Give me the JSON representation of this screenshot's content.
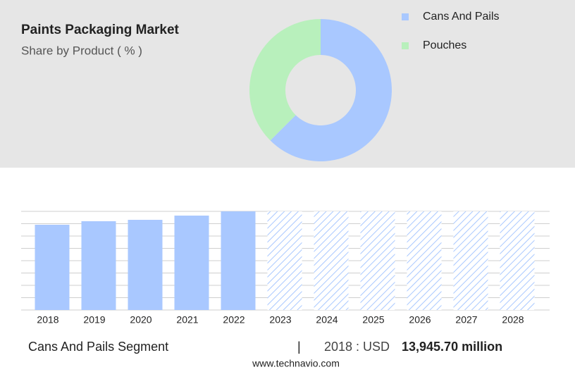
{
  "chart_data": [
    {
      "type": "pie",
      "title": "Paints Packaging Market",
      "subtitle": "Share by Product ( % )",
      "categories": [
        "Cans And Pails",
        "Pouches"
      ],
      "values": [
        62.5,
        37.5
      ],
      "colors": [
        "#a9c8ff",
        "#b8f0bc"
      ]
    },
    {
      "type": "bar",
      "categories": [
        "2018",
        "2019",
        "2020",
        "2021",
        "2022",
        "2023",
        "2024",
        "2025",
        "2026",
        "2027",
        "2028"
      ],
      "values": [
        13945.7,
        14522,
        14753,
        15444,
        16136,
        null,
        null,
        null,
        null,
        null,
        null
      ],
      "color": "#a9c8ff",
      "ylim": [
        0,
        16136
      ],
      "grid": true
    }
  ],
  "footer": {
    "segment": "Cans And Pails Segment",
    "separator": "|",
    "prefix": "2018 : USD",
    "amount": "13,945.70 million",
    "source": "www.technavio.com"
  }
}
